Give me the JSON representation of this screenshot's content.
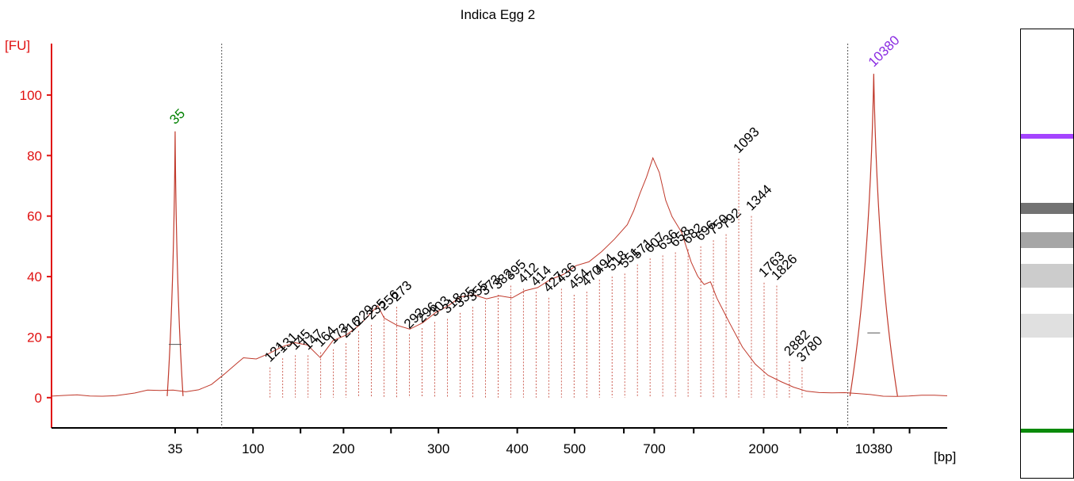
{
  "chart_data": {
    "type": "line",
    "title": "Indica Egg 2",
    "ylabel": "[FU]",
    "xlabel": "[bp]",
    "ylim": [
      -10,
      117
    ],
    "yticks": [
      0,
      20,
      40,
      60,
      80,
      100
    ],
    "xticks": [
      "35",
      "100",
      "200",
      "300",
      "400",
      "500",
      "700",
      "2000",
      "10380"
    ],
    "grid": false,
    "colors": {
      "trace": "#c0392b",
      "axis": "#e01010",
      "lower_marker": "#008000",
      "upper_marker": "#8a2be2"
    },
    "markers": [
      {
        "label": "35",
        "color": "#008000",
        "height": 88
      },
      {
        "label": "10380",
        "color": "#8a2be2",
        "height": 107
      }
    ],
    "trace_profile": [
      [
        0,
        0.5
      ],
      [
        20,
        0.4
      ],
      [
        40,
        0.6
      ],
      [
        60,
        0.5
      ],
      [
        80,
        0.8
      ],
      [
        100,
        1.0
      ],
      [
        130,
        1.6
      ],
      [
        150,
        2.2
      ],
      [
        170,
        2.0
      ],
      [
        190,
        2.4
      ],
      [
        210,
        2.2
      ],
      [
        230,
        3.0
      ],
      [
        250,
        4.5
      ],
      [
        270,
        7.5
      ],
      [
        290,
        11
      ],
      [
        300,
        13
      ],
      [
        320,
        13
      ],
      [
        340,
        15
      ],
      [
        360,
        17
      ],
      [
        380,
        18
      ],
      [
        400,
        17
      ],
      [
        420,
        13
      ],
      [
        440,
        19
      ],
      [
        460,
        21
      ],
      [
        480,
        24
      ],
      [
        500,
        28
      ],
      [
        510,
        30
      ],
      [
        520,
        26
      ],
      [
        540,
        24
      ],
      [
        560,
        23
      ],
      [
        580,
        25
      ],
      [
        600,
        28
      ],
      [
        620,
        30
      ],
      [
        640,
        33
      ],
      [
        660,
        34
      ],
      [
        680,
        33
      ],
      [
        700,
        34
      ],
      [
        720,
        33
      ],
      [
        740,
        35
      ],
      [
        760,
        36
      ],
      [
        780,
        39
      ],
      [
        800,
        41
      ],
      [
        820,
        44
      ],
      [
        840,
        45
      ],
      [
        860,
        48
      ],
      [
        880,
        52
      ],
      [
        900,
        57
      ],
      [
        910,
        62
      ],
      [
        920,
        68
      ],
      [
        930,
        73
      ],
      [
        940,
        79
      ],
      [
        950,
        74
      ],
      [
        960,
        65
      ],
      [
        970,
        60
      ],
      [
        985,
        55
      ],
      [
        1000,
        45
      ],
      [
        1010,
        40
      ],
      [
        1020,
        37
      ],
      [
        1030,
        38
      ],
      [
        1040,
        33
      ],
      [
        1060,
        25
      ],
      [
        1080,
        17
      ],
      [
        1100,
        11
      ],
      [
        1120,
        7
      ],
      [
        1140,
        5
      ],
      [
        1160,
        3.5
      ],
      [
        1180,
        2.5
      ],
      [
        1200,
        2.0
      ],
      [
        1220,
        1.6
      ],
      [
        1240,
        1.3
      ],
      [
        1260,
        1.0
      ],
      [
        1280,
        1.0
      ],
      [
        1300,
        0.8
      ],
      [
        1320,
        0.8
      ],
      [
        1340,
        0.6
      ],
      [
        1360,
        0.5
      ],
      [
        1380,
        0.4
      ],
      [
        1400,
        0.5
      ]
    ],
    "peak_labels": [
      "121",
      "131",
      "145",
      "147",
      "164",
      "173",
      "216",
      "229",
      "235",
      "256",
      "273",
      "292",
      "296",
      "303",
      "318",
      "335",
      "355",
      "373",
      "382",
      "395",
      "412",
      "414",
      "427",
      "436",
      "454",
      "470",
      "494",
      "518",
      "551",
      "571",
      "607",
      "636",
      "658",
      "682",
      "696",
      "750",
      "792",
      "1093",
      "1344",
      "1763",
      "1826",
      "2882",
      "3780"
    ],
    "peak_heights": [
      10,
      13,
      14,
      14,
      15,
      16,
      18,
      22,
      24,
      27,
      30,
      21,
      23,
      25,
      26,
      28,
      30,
      32,
      34,
      37,
      36,
      35,
      33,
      36,
      34,
      35,
      39,
      40,
      41,
      44,
      46,
      47,
      48,
      49,
      50,
      52,
      54,
      79,
      60,
      38,
      37,
      12,
      10
    ]
  },
  "gel": {
    "bands": [
      {
        "pos": 0.238,
        "intensity": 0.9,
        "color": "#9b30ff",
        "thickness": 6
      },
      {
        "pos": 0.4,
        "intensity": 0.55,
        "color": "#000000",
        "thickness": 14
      },
      {
        "pos": 0.47,
        "intensity": 0.35,
        "color": "#000000",
        "thickness": 20
      },
      {
        "pos": 0.55,
        "intensity": 0.2,
        "color": "#000000",
        "thickness": 30
      },
      {
        "pos": 0.66,
        "intensity": 0.12,
        "color": "#000000",
        "thickness": 30
      },
      {
        "pos": 0.895,
        "intensity": 1.0,
        "color": "#0a8a0a",
        "thickness": 5
      }
    ]
  }
}
